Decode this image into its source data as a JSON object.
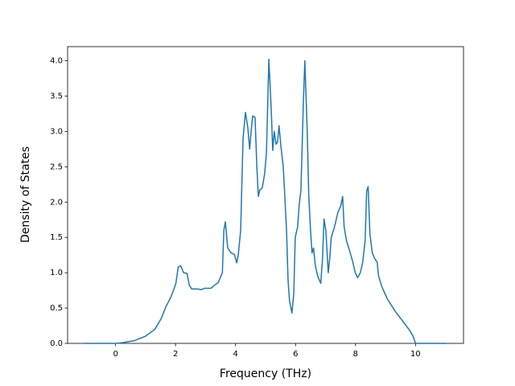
{
  "chart_data": {
    "type": "line",
    "xlabel": "Frequency (THz)",
    "ylabel": "Density of States",
    "xlim": [
      -1.6,
      11.6
    ],
    "xticks": [
      0,
      2,
      4,
      6,
      8,
      10
    ],
    "ylim": [
      0,
      4.2
    ],
    "yticks": [
      {
        "value": 0,
        "label": "0.0"
      },
      {
        "value": 0.5,
        "label": "0.5"
      },
      {
        "value": 1,
        "label": "1.0"
      },
      {
        "value": 1.5,
        "label": "1.5"
      },
      {
        "value": 2,
        "label": "2.0"
      },
      {
        "value": 2.5,
        "label": "2.5"
      },
      {
        "value": 3,
        "label": "3.0"
      },
      {
        "value": 3.5,
        "label": "3.5"
      },
      {
        "value": 4,
        "label": "4.0"
      }
    ],
    "grid": false,
    "series": [
      {
        "color": "#1f77b4",
        "x": [
          -1.04,
          0,
          0.24,
          0.64,
          0.99,
          1.31,
          1.52,
          1.68,
          1.84,
          1.93,
          2.01,
          2.09,
          2.17,
          2.27,
          2.38,
          2.46,
          2.54,
          2.75,
          2.86,
          2.97,
          3.18,
          3.29,
          3.42,
          3.56,
          3.61,
          3.66,
          3.74,
          3.85,
          3.96,
          4.04,
          4.09,
          4.17,
          4.25,
          4.33,
          4.41,
          4.47,
          4.52,
          4.57,
          4.65,
          4.71,
          4.76,
          4.81,
          4.89,
          4.97,
          5.03,
          5.11,
          5.19,
          5.24,
          5.29,
          5.35,
          5.4,
          5.45,
          5.51,
          5.59,
          5.64,
          5.7,
          5.75,
          5.8,
          5.88,
          5.94,
          5.99,
          6.07,
          6.12,
          6.18,
          6.26,
          6.31,
          6.39,
          6.44,
          6.5,
          6.55,
          6.6,
          6.66,
          6.74,
          6.84,
          6.9,
          6.95,
          7.01,
          7.09,
          7.14,
          7.19,
          7.3,
          7.41,
          7.51,
          7.57,
          7.62,
          7.7,
          7.81,
          7.91,
          7.99,
          8.07,
          8.16,
          8.24,
          8.32,
          8.37,
          8.42,
          8.48,
          8.56,
          8.64,
          8.72,
          8.77,
          8.88,
          9.06,
          9.33,
          9.6,
          9.81,
          9.92,
          10.0,
          10.4,
          11.02
        ],
        "values": [
          0,
          0,
          0.01,
          0.04,
          0.1,
          0.2,
          0.35,
          0.52,
          0.65,
          0.75,
          0.85,
          1.08,
          1.1,
          1.0,
          0.99,
          0.82,
          0.77,
          0.77,
          0.76,
          0.78,
          0.78,
          0.82,
          0.86,
          1.0,
          1.6,
          1.72,
          1.35,
          1.28,
          1.26,
          1.14,
          1.25,
          1.6,
          2.9,
          3.27,
          3.05,
          2.75,
          3.0,
          3.22,
          3.2,
          2.5,
          2.08,
          2.17,
          2.2,
          2.4,
          2.7,
          4.02,
          3.3,
          2.73,
          3.0,
          2.82,
          2.85,
          3.08,
          2.8,
          2.5,
          2.1,
          1.6,
          0.9,
          0.6,
          0.43,
          0.7,
          1.5,
          1.65,
          1.95,
          2.17,
          3.4,
          4.0,
          3.0,
          2.1,
          1.6,
          1.28,
          1.35,
          1.1,
          0.95,
          0.85,
          1.2,
          1.76,
          1.6,
          1.0,
          1.2,
          1.5,
          1.65,
          1.85,
          1.95,
          2.08,
          1.65,
          1.45,
          1.3,
          1.15,
          1.0,
          0.93,
          1.0,
          1.15,
          1.45,
          2.15,
          2.22,
          1.55,
          1.28,
          1.2,
          1.15,
          0.95,
          0.8,
          0.63,
          0.45,
          0.3,
          0.18,
          0.1,
          0,
          0,
          0
        ]
      }
    ]
  }
}
